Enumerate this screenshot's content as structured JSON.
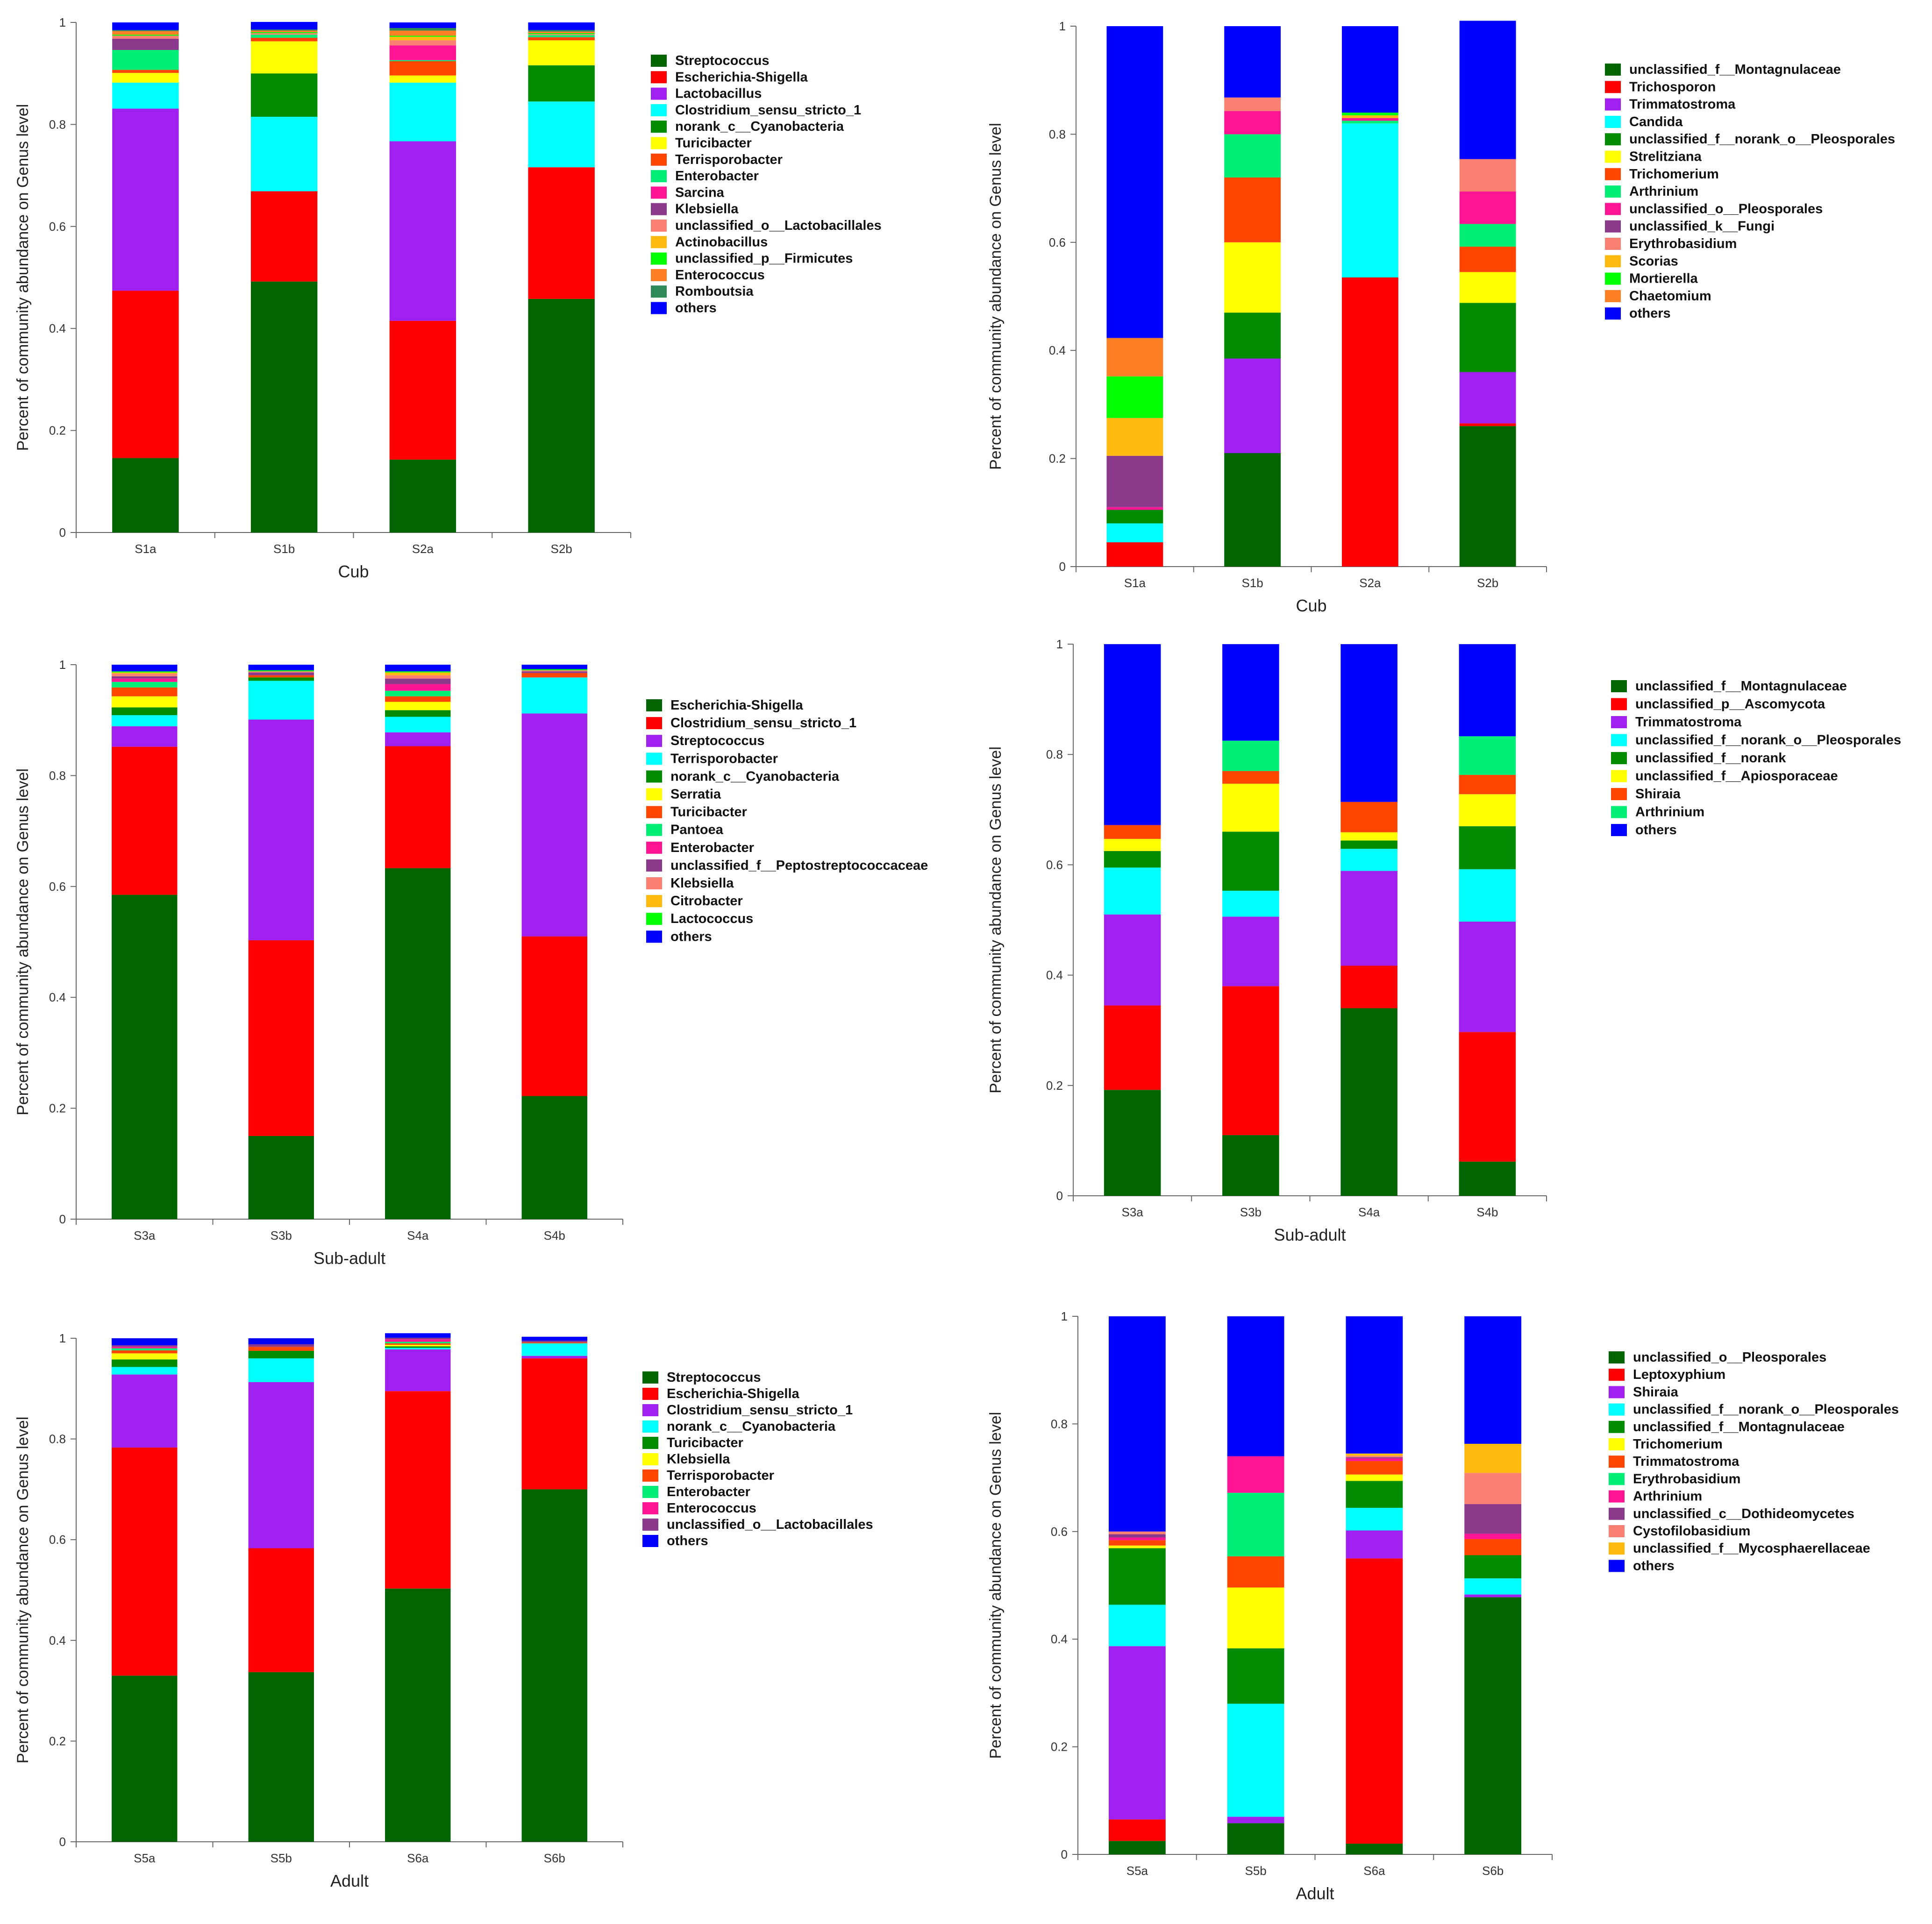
{
  "chart_data": [
    {
      "id": "cub-bacteria",
      "type": "bar",
      "stacked": true,
      "xlabel": "Cub",
      "ylabel": "Percent of community abundance on Genus level",
      "ylim": [
        0,
        1
      ],
      "yticks": [
        0,
        0.2,
        0.4,
        0.6,
        0.8,
        1
      ],
      "ytick_labels": [
        "0",
        "0.2",
        "0.4",
        "0.6",
        "0.8",
        "1"
      ],
      "categories": [
        "S1a",
        "S1b",
        "S2a",
        "S2b"
      ],
      "series": [
        {
          "name": "Streptococcus",
          "color": "#006400",
          "values": [
            0.146,
            0.492,
            0.143,
            0.458
          ]
        },
        {
          "name": "Escherichia-Shigella",
          "color": "#FF0000",
          "values": [
            0.328,
            0.177,
            0.272,
            0.258
          ]
        },
        {
          "name": "Lactobacillus",
          "color": "#A020F0",
          "values": [
            0.357,
            0.0,
            0.352,
            0.0
          ]
        },
        {
          "name": "Clostridium_sensu_stricto_1",
          "color": "#00FFFF",
          "values": [
            0.051,
            0.146,
            0.115,
            0.129
          ]
        },
        {
          "name": "norank_c__Cyanobacteria",
          "color": "#008B00",
          "values": [
            0.0,
            0.085,
            0.0,
            0.071
          ]
        },
        {
          "name": "Turicibacter",
          "color": "#FFFF00",
          "values": [
            0.019,
            0.063,
            0.014,
            0.049
          ]
        },
        {
          "name": "Terrisporobacter",
          "color": "#FF4500",
          "values": [
            0.006,
            0.007,
            0.028,
            0.006
          ]
        },
        {
          "name": "Enterobacter",
          "color": "#00EE76",
          "values": [
            0.039,
            0.006,
            0.002,
            0.004
          ]
        },
        {
          "name": "Sarcina",
          "color": "#FF1493",
          "values": [
            0.0,
            0.0,
            0.029,
            0.0
          ]
        },
        {
          "name": "Klebsiella",
          "color": "#8B3A8B",
          "values": [
            0.022,
            0.0,
            0.0,
            0.0
          ]
        },
        {
          "name": "unclassified_o__Lactobacillales",
          "color": "#FA8072",
          "values": [
            0.006,
            0.003,
            0.01,
            0.002
          ]
        },
        {
          "name": "Actinobacillus",
          "color": "#FFB90F",
          "values": [
            0.0,
            0.0,
            0.007,
            0.0
          ]
        },
        {
          "name": "unclassified_p__Firmicutes",
          "color": "#00FF00",
          "values": [
            0.002,
            0.002,
            0.002,
            0.002
          ]
        },
        {
          "name": "Enterococcus",
          "color": "#FF7F24",
          "values": [
            0.007,
            0.003,
            0.01,
            0.003
          ]
        },
        {
          "name": "Romboutsia",
          "color": "#2E8B57",
          "values": [
            0.002,
            0.002,
            0.005,
            0.003
          ]
        },
        {
          "name": "others",
          "color": "#0000FF",
          "values": [
            0.015,
            0.015,
            0.011,
            0.015
          ]
        }
      ]
    },
    {
      "id": "cub-fungi",
      "type": "bar",
      "stacked": true,
      "xlabel": "Cub",
      "ylabel": "Percent of community abundance on Genus level",
      "ylim": [
        0,
        1
      ],
      "yticks": [
        0,
        0.2,
        0.4,
        0.6,
        0.8,
        1
      ],
      "ytick_labels": [
        "0",
        "0.2",
        "0.4",
        "0.6",
        "0.8",
        "1"
      ],
      "categories": [
        "S1a",
        "S1b",
        "S2a",
        "S2b"
      ],
      "series": [
        {
          "name": "unclassified_f__Montagnulaceae",
          "color": "#006400",
          "values": [
            0.0,
            0.21,
            0.0,
            0.26
          ]
        },
        {
          "name": "Trichosporon",
          "color": "#FF0000",
          "values": [
            0.045,
            0.0,
            0.535,
            0.005
          ]
        },
        {
          "name": "Trimmatostroma",
          "color": "#A020F0",
          "values": [
            0.0,
            0.175,
            0.0,
            0.095
          ]
        },
        {
          "name": "Candida",
          "color": "#00FFFF",
          "values": [
            0.035,
            0.0,
            0.285,
            0.0
          ]
        },
        {
          "name": "unclassified_f__norank_o__Pleosporales",
          "color": "#008B00",
          "values": [
            0.025,
            0.085,
            0.0,
            0.128
          ]
        },
        {
          "name": "Strelitziana",
          "color": "#FFFF00",
          "values": [
            0.0,
            0.13,
            0.0,
            0.057
          ]
        },
        {
          "name": "Trichomerium",
          "color": "#FF4500",
          "values": [
            0.0,
            0.12,
            0.0,
            0.047
          ]
        },
        {
          "name": "Arthrinium",
          "color": "#00EE76",
          "values": [
            0.0,
            0.08,
            0.005,
            0.042
          ]
        },
        {
          "name": "unclassified_o__Pleosporales",
          "color": "#FF1493",
          "values": [
            0.005,
            0.043,
            0.005,
            0.06
          ]
        },
        {
          "name": "unclassified_k__Fungi",
          "color": "#8B3A8B",
          "values": [
            0.095,
            0.0,
            0.0,
            0.0
          ]
        },
        {
          "name": "Erythrobasidium",
          "color": "#FA8072",
          "values": [
            0.0,
            0.025,
            0.0,
            0.06
          ]
        },
        {
          "name": "Scorias",
          "color": "#FFB90F",
          "values": [
            0.07,
            0.0,
            0.005,
            0.0
          ]
        },
        {
          "name": "Mortierella",
          "color": "#00FF00",
          "values": [
            0.077,
            0.0,
            0.005,
            0.0
          ]
        },
        {
          "name": "Chaetomium",
          "color": "#FF7F24",
          "values": [
            0.071,
            0.0,
            0.0,
            0.0
          ]
        },
        {
          "name": "others",
          "color": "#0000FF",
          "values": [
            0.577,
            0.132,
            0.16,
            0.256
          ]
        }
      ]
    },
    {
      "id": "subadult-bacteria",
      "type": "bar",
      "stacked": true,
      "xlabel": "Sub-adult",
      "ylabel": "Percent of community abundance on Genus level",
      "ylim": [
        0,
        1
      ],
      "yticks": [
        0,
        0.2,
        0.4,
        0.6,
        0.8,
        1
      ],
      "ytick_labels": [
        "0",
        "0.2",
        "0.4",
        "0.6",
        "0.8",
        "1"
      ],
      "categories": [
        "S3a",
        "S3b",
        "S4a",
        "S4b"
      ],
      "series": [
        {
          "name": "Escherichia-Shigella",
          "color": "#006400",
          "values": [
            0.585,
            0.15,
            0.633,
            0.222
          ]
        },
        {
          "name": "Clostridium_sensu_stricto_1",
          "color": "#FF0000",
          "values": [
            0.267,
            0.353,
            0.22,
            0.288
          ]
        },
        {
          "name": "Streptococcus",
          "color": "#A020F0",
          "values": [
            0.037,
            0.398,
            0.025,
            0.402
          ]
        },
        {
          "name": "Terrisporobacter",
          "color": "#00FFFF",
          "values": [
            0.02,
            0.07,
            0.028,
            0.065
          ]
        },
        {
          "name": "norank_c__Cyanobacteria",
          "color": "#008B00",
          "values": [
            0.014,
            0.006,
            0.012,
            0.0
          ]
        },
        {
          "name": "Serratia",
          "color": "#FFFF00",
          "values": [
            0.02,
            0.0,
            0.015,
            0.0
          ]
        },
        {
          "name": "Turicibacter",
          "color": "#FF4500",
          "values": [
            0.016,
            0.004,
            0.01,
            0.008
          ]
        },
        {
          "name": "Pantoea",
          "color": "#00EE76",
          "values": [
            0.01,
            0.0,
            0.01,
            0.0
          ]
        },
        {
          "name": "Enterobacter",
          "color": "#FF1493",
          "values": [
            0.006,
            0.0,
            0.012,
            0.0
          ]
        },
        {
          "name": "unclassified_f__Peptostreptococcaceae",
          "color": "#8B3A8B",
          "values": [
            0.004,
            0.005,
            0.01,
            0.003
          ]
        },
        {
          "name": "Klebsiella",
          "color": "#FA8072",
          "values": [
            0.005,
            0.002,
            0.006,
            0.002
          ]
        },
        {
          "name": "Citrobacter",
          "color": "#FFB90F",
          "values": [
            0.002,
            0.0,
            0.005,
            0.0
          ]
        },
        {
          "name": "Lactococcus",
          "color": "#00FF00",
          "values": [
            0.002,
            0.002,
            0.002,
            0.002
          ]
        },
        {
          "name": "others",
          "color": "#0000FF",
          "values": [
            0.012,
            0.01,
            0.012,
            0.008
          ]
        }
      ]
    },
    {
      "id": "subadult-fungi",
      "type": "bar",
      "stacked": true,
      "xlabel": "Sub-adult",
      "ylabel": "Percent of community abundance on Genus level",
      "ylim": [
        0,
        1
      ],
      "yticks": [
        0,
        0.2,
        0.4,
        0.6,
        0.8,
        1
      ],
      "ytick_labels": [
        "0",
        "0.2",
        "0.4",
        "0.6",
        "0.8",
        "1"
      ],
      "categories": [
        "S3a",
        "S3b",
        "S4a",
        "S4b"
      ],
      "series": [
        {
          "name": "unclassified_f__Montagnulaceae",
          "color": "#006400",
          "values": [
            0.192,
            0.11,
            0.34,
            0.062
          ]
        },
        {
          "name": "unclassified_p__Ascomycota",
          "color": "#FF0000",
          "values": [
            0.153,
            0.27,
            0.077,
            0.235
          ]
        },
        {
          "name": "Trimmatostroma",
          "color": "#A020F0",
          "values": [
            0.165,
            0.126,
            0.172,
            0.2
          ]
        },
        {
          "name": "unclassified_f__norank_o__Pleosporales",
          "color": "#00FFFF",
          "values": [
            0.085,
            0.047,
            0.04,
            0.095
          ]
        },
        {
          "name": "unclassified_f__norank",
          "color": "#008B00",
          "values": [
            0.03,
            0.107,
            0.015,
            0.078
          ]
        },
        {
          "name": "unclassified_f__Apiosporaceae",
          "color": "#FFFF00",
          "values": [
            0.022,
            0.087,
            0.015,
            0.058
          ]
        },
        {
          "name": "Shiraia",
          "color": "#FF4500",
          "values": [
            0.025,
            0.023,
            0.055,
            0.035
          ]
        },
        {
          "name": "Arthrinium",
          "color": "#00EE76",
          "values": [
            0.0,
            0.055,
            0.0,
            0.07
          ]
        },
        {
          "name": "others",
          "color": "#0000FF",
          "values": [
            0.328,
            0.175,
            0.286,
            0.167
          ]
        }
      ]
    },
    {
      "id": "adult-bacteria",
      "type": "bar",
      "stacked": true,
      "xlabel": "Adult",
      "ylabel": "Percent of community abundance on Genus level",
      "ylim": [
        0,
        1
      ],
      "yticks": [
        0,
        0.2,
        0.4,
        0.6,
        0.8,
        1
      ],
      "ytick_labels": [
        "0",
        "0.2",
        "0.4",
        "0.6",
        "0.8",
        "1"
      ],
      "categories": [
        "S5a",
        "S5b",
        "S6a",
        "S6b"
      ],
      "series": [
        {
          "name": "Streptococcus",
          "color": "#006400",
          "values": [
            0.33,
            0.337,
            0.503,
            0.7
          ]
        },
        {
          "name": "Escherichia-Shigella",
          "color": "#FF0000",
          "values": [
            0.453,
            0.246,
            0.392,
            0.26
          ]
        },
        {
          "name": "Clostridium_sensu_stricto_1",
          "color": "#A020F0",
          "values": [
            0.145,
            0.33,
            0.083,
            0.005
          ]
        },
        {
          "name": "norank_c__Cyanobacteria",
          "color": "#00FFFF",
          "values": [
            0.015,
            0.047,
            0.003,
            0.025
          ]
        },
        {
          "name": "Turicibacter",
          "color": "#008B00",
          "values": [
            0.015,
            0.015,
            0.003,
            0.0
          ]
        },
        {
          "name": "Klebsiella",
          "color": "#FFFF00",
          "values": [
            0.012,
            0.0,
            0.003,
            0.0
          ]
        },
        {
          "name": "Terrisporobacter",
          "color": "#FF4500",
          "values": [
            0.006,
            0.008,
            0.003,
            0.002
          ]
        },
        {
          "name": "Enterobacter",
          "color": "#00EE76",
          "values": [
            0.004,
            0.0,
            0.003,
            0.0
          ]
        },
        {
          "name": "Enterococcus",
          "color": "#FF1493",
          "values": [
            0.003,
            0.0,
            0.005,
            0.0
          ]
        },
        {
          "name": "unclassified_o__Lactobacillales",
          "color": "#8B3A8B",
          "values": [
            0.003,
            0.005,
            0.003,
            0.003
          ]
        },
        {
          "name": "others",
          "color": "#0000FF",
          "values": [
            0.014,
            0.012,
            0.009,
            0.008
          ]
        }
      ]
    },
    {
      "id": "adult-fungi",
      "type": "bar",
      "stacked": true,
      "xlabel": "Adult",
      "ylabel": "Percent of community abundance on Genus level",
      "ylim": [
        0,
        1
      ],
      "yticks": [
        0,
        0.2,
        0.4,
        0.6,
        0.8,
        1
      ],
      "ytick_labels": [
        "0",
        "0.2",
        "0.4",
        "0.6",
        "0.8",
        "1"
      ],
      "categories": [
        "S5a",
        "S5b",
        "S6a",
        "S6b"
      ],
      "series": [
        {
          "name": "unclassified_o__Pleosporales",
          "color": "#006400",
          "values": [
            0.025,
            0.058,
            0.02,
            0.478
          ]
        },
        {
          "name": "Leptoxyphium",
          "color": "#FF0000",
          "values": [
            0.04,
            0.0,
            0.53,
            0.0
          ]
        },
        {
          "name": "Shiraia",
          "color": "#A020F0",
          "values": [
            0.322,
            0.012,
            0.052,
            0.005
          ]
        },
        {
          "name": "unclassified_f__norank_o__Pleosporales",
          "color": "#00FFFF",
          "values": [
            0.077,
            0.21,
            0.042,
            0.03
          ]
        },
        {
          "name": "unclassified_f__Montagnulaceae",
          "color": "#008B00",
          "values": [
            0.105,
            0.103,
            0.05,
            0.043
          ]
        },
        {
          "name": "Trichomerium",
          "color": "#FFFF00",
          "values": [
            0.005,
            0.113,
            0.012,
            0.0
          ]
        },
        {
          "name": "Trimmatostroma",
          "color": "#FF4500",
          "values": [
            0.01,
            0.058,
            0.025,
            0.03
          ]
        },
        {
          "name": "Erythrobasidium",
          "color": "#00EE76",
          "values": [
            0.0,
            0.118,
            0.0,
            0.0
          ]
        },
        {
          "name": "Arthrinium",
          "color": "#FF1493",
          "values": [
            0.005,
            0.068,
            0.005,
            0.01
          ]
        },
        {
          "name": "unclassified_c__Dothideomycetes",
          "color": "#8B3A8B",
          "values": [
            0.006,
            0.0,
            0.002,
            0.055
          ]
        },
        {
          "name": "Cystofilobasidium",
          "color": "#FA8072",
          "values": [
            0.005,
            0.0,
            0.003,
            0.058
          ]
        },
        {
          "name": "unclassified_f__Mycosphaerellaceae",
          "color": "#FFB90F",
          "values": [
            0.0,
            0.0,
            0.004,
            0.054
          ]
        },
        {
          "name": "others",
          "color": "#0000FF",
          "values": [
            0.4,
            0.26,
            0.255,
            0.237
          ]
        }
      ]
    }
  ]
}
